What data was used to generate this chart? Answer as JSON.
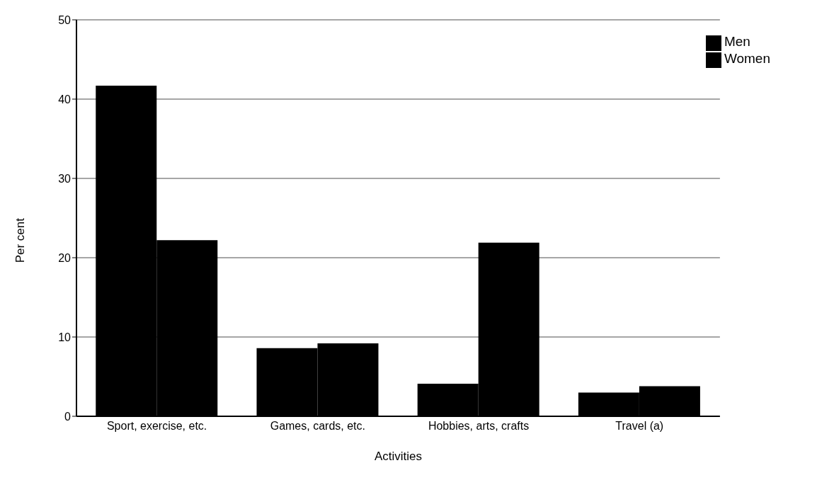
{
  "chart_data": {
    "type": "bar",
    "xlabel": "Activities",
    "ylabel": "Per cent",
    "categories": [
      "Sport, exercise, etc.",
      "Games, cards, etc.",
      "Hobbies, arts, crafts",
      "Travel (a)"
    ],
    "series": [
      {
        "name": "Men",
        "color": "#000000",
        "values": [
          41.7,
          8.6,
          4.1,
          3.0
        ]
      },
      {
        "name": "Women",
        "color": "#000000",
        "values": [
          22.2,
          9.2,
          21.9,
          3.8
        ]
      }
    ],
    "ylim": [
      0,
      50
    ],
    "yticks": [
      0,
      10,
      20,
      30,
      40,
      50
    ],
    "grid": "y",
    "legend": "top right"
  }
}
